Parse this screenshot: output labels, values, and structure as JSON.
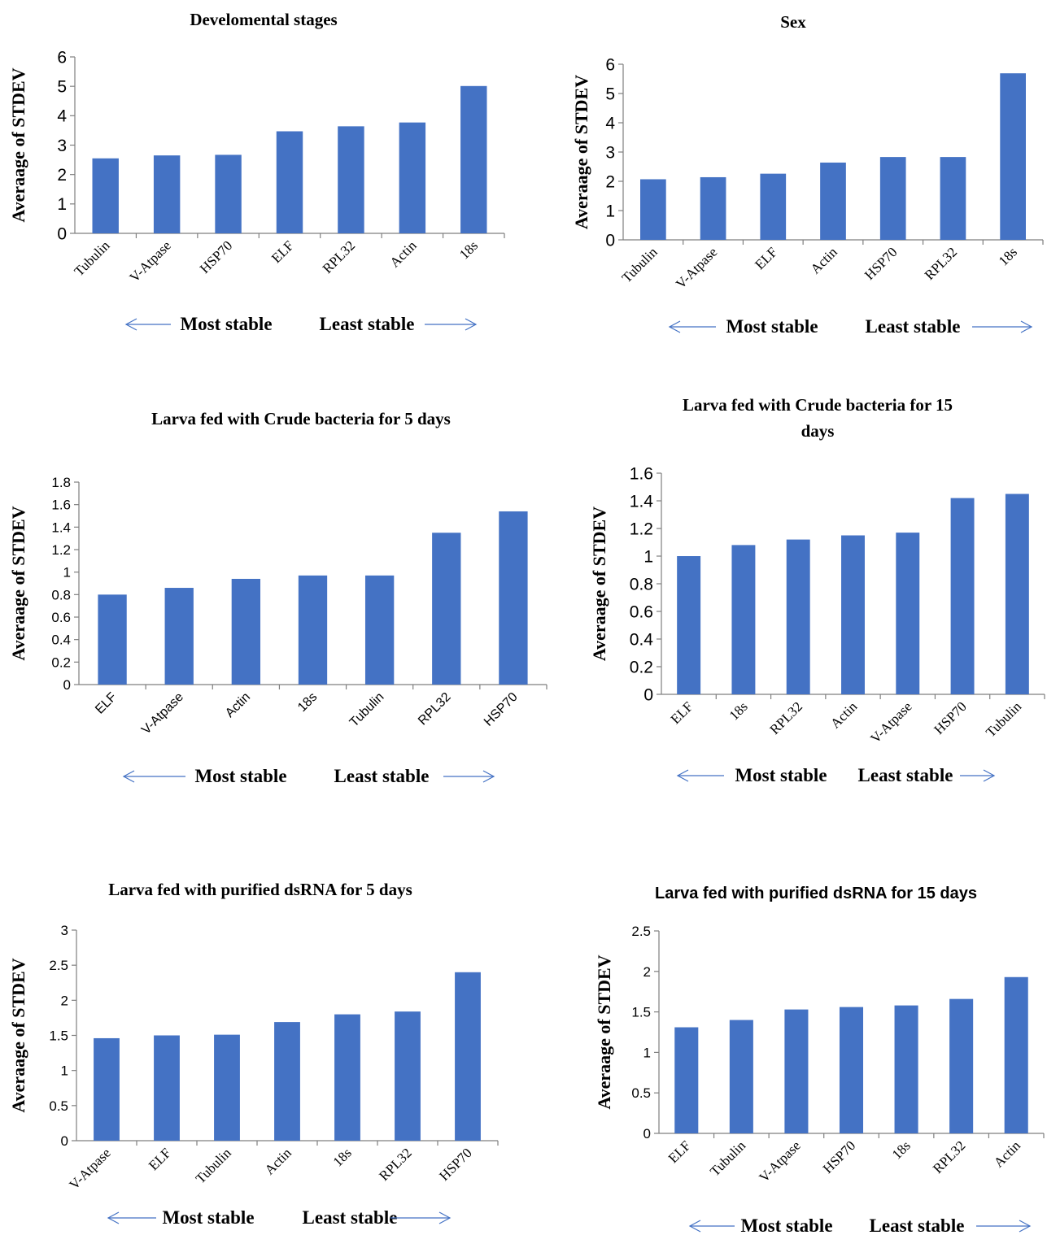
{
  "colors": {
    "bar": "#4472C4",
    "axis": "#7f7f7f",
    "arrow": "#4472C4",
    "text": "#000000"
  },
  "ylabel": "Averaage of STDEV",
  "most_stable_label": "Most stable",
  "least_stable_label": "Least stable",
  "chart_data": [
    {
      "type": "bar",
      "title": [
        "Develomental stages"
      ],
      "ylabel": "Averaage of STDEV",
      "ylim": [
        0,
        6
      ],
      "yticks": [
        "0",
        "1",
        "2",
        "3",
        "4",
        "5",
        "6"
      ],
      "categories": [
        "Tubulin",
        "V-Atpase",
        "HSP70",
        "ELF",
        "RPL32",
        "Actin",
        "18s"
      ],
      "values": [
        2.55,
        2.65,
        2.67,
        3.47,
        3.64,
        3.77,
        5.01
      ]
    },
    {
      "type": "bar",
      "title": [
        "Sex"
      ],
      "ylabel": "Averaage of STDEV",
      "ylim": [
        0,
        6
      ],
      "yticks": [
        "0",
        "1",
        "2",
        "3",
        "4",
        "5",
        "6"
      ],
      "categories": [
        "Tubulin",
        "V-Atpase",
        "ELF",
        "Actin",
        "HSP70",
        "RPL32",
        "18s"
      ],
      "values": [
        2.07,
        2.14,
        2.26,
        2.64,
        2.83,
        2.83,
        5.69
      ]
    },
    {
      "type": "bar",
      "title": [
        "Larva fed with Crude bacteria  for 5 days"
      ],
      "ylabel": "Averaage of STDEV",
      "ylim": [
        0,
        1.8
      ],
      "yticks": [
        "0",
        "0.2",
        "0.4",
        "0.6",
        "0.8",
        "1",
        "1.2",
        "1.4",
        "1.6",
        "1.8"
      ],
      "categories": [
        "ELF",
        "V-Atpase",
        "Actin",
        "18s",
        "Tubulin",
        "RPL32",
        "HSP70"
      ],
      "values": [
        0.8,
        0.86,
        0.94,
        0.97,
        0.97,
        1.35,
        1.54
      ]
    },
    {
      "type": "bar",
      "title": [
        "Larva fed with Crude bacteria  for 15",
        "days"
      ],
      "ylabel": "Averaage of STDEV",
      "ylim": [
        0,
        1.6
      ],
      "yticks": [
        "0",
        "0.2",
        "0.4",
        "0.6",
        "0.8",
        "1",
        "1.2",
        "1.4",
        "1.6"
      ],
      "categories": [
        "ELF",
        "18s",
        "RPL32",
        "Actin",
        "V-Atpase",
        "HSP70",
        "Tubulin"
      ],
      "values": [
        1.0,
        1.08,
        1.12,
        1.15,
        1.17,
        1.42,
        1.45
      ]
    },
    {
      "type": "bar",
      "title": [
        "Larva fed with purified dsRNA  for 5 days"
      ],
      "ylabel": "Averaage of STDEV",
      "ylim": [
        0,
        3
      ],
      "yticks": [
        "0",
        "0.5",
        "1",
        "1.5",
        "2",
        "2.5",
        "3"
      ],
      "categories": [
        "V-Atpase",
        "ELF",
        "Tubulin",
        "Actin",
        "18s",
        "RPL32",
        "HSP70"
      ],
      "values": [
        1.46,
        1.5,
        1.51,
        1.69,
        1.8,
        1.84,
        2.4
      ]
    },
    {
      "type": "bar",
      "title": [
        "Larva fed with purified dsRNA  for 15 days"
      ],
      "ylabel": "Averaage of STDEV",
      "ylim": [
        0,
        2.5
      ],
      "yticks": [
        "0",
        "0.5",
        "1",
        "1.5",
        "2",
        "2.5"
      ],
      "categories": [
        "ELF",
        "Tubulin",
        "V-Atpase",
        "HSP70",
        "18s",
        "RPL32",
        "Actin"
      ],
      "values": [
        1.31,
        1.4,
        1.53,
        1.56,
        1.58,
        1.66,
        1.93
      ]
    }
  ]
}
